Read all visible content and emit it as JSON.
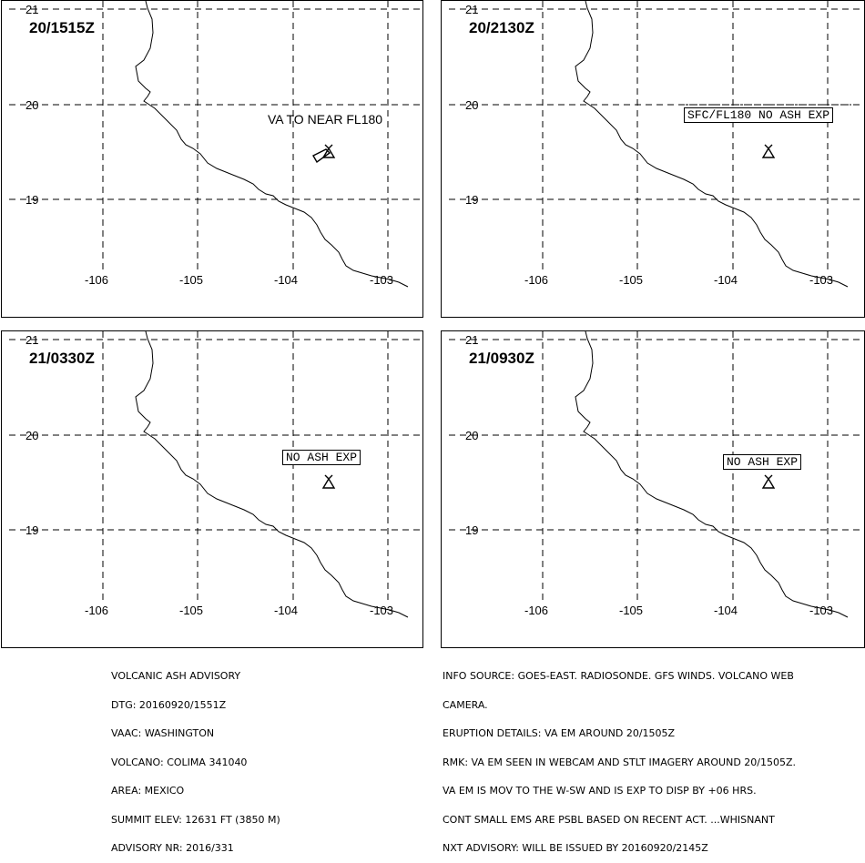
{
  "panels": [
    {
      "time": "20/1515Z",
      "lat_labels": [
        "21",
        "20",
        "19"
      ],
      "lon_labels": [
        "-106",
        "-105",
        "-104",
        "-103"
      ],
      "annotation": "VA TO NEAR FL180",
      "annotation_boxed": false
    },
    {
      "time": "20/2130Z",
      "lat_labels": [
        "21",
        "20",
        "19"
      ],
      "lon_labels": [
        "-106",
        "-105",
        "-104",
        "-103"
      ],
      "annotation": "SFC/FL180 NO ASH EXP",
      "annotation_boxed": true
    },
    {
      "time": "21/0330Z",
      "lat_labels": [
        "21",
        "20",
        "19"
      ],
      "lon_labels": [
        "-106",
        "-105",
        "-104",
        "-103"
      ],
      "annotation": "NO ASH EXP",
      "annotation_boxed": true
    },
    {
      "time": "21/0930Z",
      "lat_labels": [
        "21",
        "20",
        "19"
      ],
      "lon_labels": [
        "-106",
        "-105",
        "-104",
        "-103"
      ],
      "annotation": "NO ASH EXP",
      "annotation_boxed": true
    }
  ],
  "advisory_left": [
    "VOLCANIC ASH ADVISORY",
    "DTG: 20160920/1551Z",
    "VAAC: WASHINGTON",
    "VOLCANO: COLIMA 341040",
    "AREA: MEXICO",
    "SUMMIT ELEV: 12631 FT (3850 M)",
    "ADVISORY NR: 2016/331"
  ],
  "advisory_right": [
    "INFO SOURCE: GOES-EAST. RADIOSONDE. GFS WINDS. VOLCANO WEB",
    "CAMERA.",
    "ERUPTION DETAILS: VA EM AROUND 20/1505Z",
    "RMK: VA EM SEEN IN WEBCAM AND STLT IMAGERY AROUND 20/1505Z.",
    "VA EM IS MOV TO THE W-SW AND IS EXP TO DISP BY +06 HRS.",
    "CONT SMALL EMS ARE PSBL BASED ON RECENT ACT. ...WHISNANT",
    "NXT ADVISORY: WILL BE ISSUED BY 20160920/2145Z"
  ],
  "icons": {
    "volcano": "volcano-triangle-icon"
  }
}
